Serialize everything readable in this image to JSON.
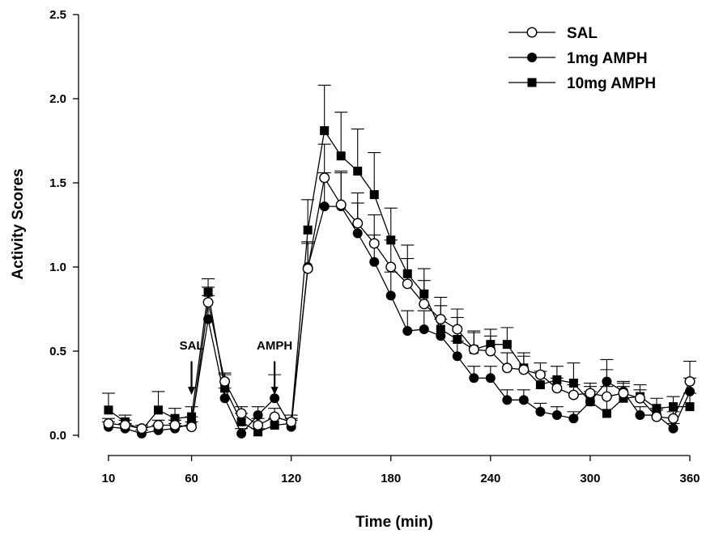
{
  "chart_data": {
    "type": "line",
    "xlabel": "Time (min)",
    "ylabel": "Activity Scores",
    "xlim": [
      10,
      360
    ],
    "ylim": [
      0,
      2.5
    ],
    "xticks": [
      "10",
      "60",
      "120",
      "180",
      "240",
      "300",
      "360"
    ],
    "yticks": [
      "0.0",
      "0.5",
      "1.0",
      "1.5",
      "2.0",
      "2.5"
    ],
    "legend_position": "top-right",
    "x": [
      10,
      20,
      30,
      40,
      50,
      60,
      70,
      80,
      90,
      100,
      110,
      120,
      130,
      140,
      150,
      160,
      170,
      180,
      190,
      200,
      210,
      220,
      230,
      240,
      250,
      260,
      270,
      280,
      290,
      300,
      310,
      320,
      330,
      340,
      350,
      360
    ],
    "series": [
      {
        "name": "SAL",
        "marker": "open-circle",
        "values": [
          0.07,
          0.06,
          0.04,
          0.06,
          0.06,
          0.05,
          0.79,
          0.32,
          0.13,
          0.06,
          0.11,
          0.08,
          0.99,
          1.53,
          1.37,
          1.26,
          1.14,
          1.0,
          0.9,
          0.78,
          0.69,
          0.63,
          0.51,
          0.5,
          0.4,
          0.39,
          0.36,
          0.28,
          0.24,
          0.25,
          0.23,
          0.25,
          0.22,
          0.11,
          0.1,
          0.32
        ],
        "errors": [
          0.03,
          0.03,
          0.02,
          0.03,
          0.03,
          0.03,
          0.09,
          0.05,
          0.04,
          0.04,
          0.05,
          0.04,
          0.15,
          0.2,
          0.2,
          0.18,
          0.17,
          0.16,
          0.15,
          0.14,
          0.13,
          0.12,
          0.1,
          0.09,
          0.09,
          0.08,
          0.07,
          0.06,
          0.06,
          0.06,
          0.06,
          0.06,
          0.05,
          0.04,
          0.04,
          0.12
        ]
      },
      {
        "name": "1mg AMPH",
        "marker": "filled-circle",
        "values": [
          0.05,
          0.04,
          0.01,
          0.03,
          0.04,
          0.07,
          0.69,
          0.22,
          0.01,
          0.12,
          0.22,
          0.05,
          1.0,
          1.36,
          1.36,
          1.2,
          1.03,
          0.83,
          0.62,
          0.63,
          0.59,
          0.47,
          0.34,
          0.34,
          0.21,
          0.21,
          0.14,
          0.12,
          0.1,
          0.2,
          0.32,
          0.26,
          0.12,
          0.12,
          0.04,
          0.26
        ],
        "errors": [
          0.03,
          0.03,
          0.02,
          0.03,
          0.03,
          0.04,
          0.14,
          0.06,
          0.03,
          0.05,
          0.14,
          0.04,
          0.15,
          0.2,
          0.2,
          0.18,
          0.16,
          0.14,
          0.12,
          0.11,
          0.1,
          0.09,
          0.07,
          0.07,
          0.06,
          0.06,
          0.05,
          0.05,
          0.04,
          0.06,
          0.07,
          0.06,
          0.05,
          0.04,
          0.03,
          0.08
        ]
      },
      {
        "name": "10mg AMPH",
        "marker": "filled-square",
        "values": [
          0.15,
          0.08,
          0.03,
          0.15,
          0.1,
          0.11,
          0.85,
          0.28,
          0.08,
          0.02,
          0.06,
          0.07,
          1.22,
          1.81,
          1.66,
          1.57,
          1.43,
          1.16,
          0.96,
          0.84,
          0.63,
          0.57,
          0.51,
          0.54,
          0.54,
          0.4,
          0.3,
          0.33,
          0.31,
          0.2,
          0.13,
          0.22,
          0.23,
          0.16,
          0.17,
          0.17
        ],
        "errors": [
          0.1,
          0.04,
          0.02,
          0.11,
          0.06,
          0.06,
          0.08,
          0.08,
          0.05,
          0.02,
          0.04,
          0.03,
          0.18,
          0.27,
          0.26,
          0.25,
          0.25,
          0.19,
          0.17,
          0.15,
          0.14,
          0.13,
          0.11,
          0.09,
          0.1,
          0.09,
          0.08,
          0.08,
          0.12,
          0.09,
          0.32,
          0.07,
          0.07,
          0.06,
          0.06,
          0.08
        ]
      }
    ],
    "annotations": [
      {
        "text": "SAL",
        "x": 60,
        "arrow_tip_y": 0.24,
        "arrow_top_y": 0.44,
        "label_y": 0.51
      },
      {
        "text": "AMPH",
        "x": 110,
        "arrow_tip_y": 0.24,
        "arrow_top_y": 0.44,
        "label_y": 0.51
      }
    ]
  }
}
